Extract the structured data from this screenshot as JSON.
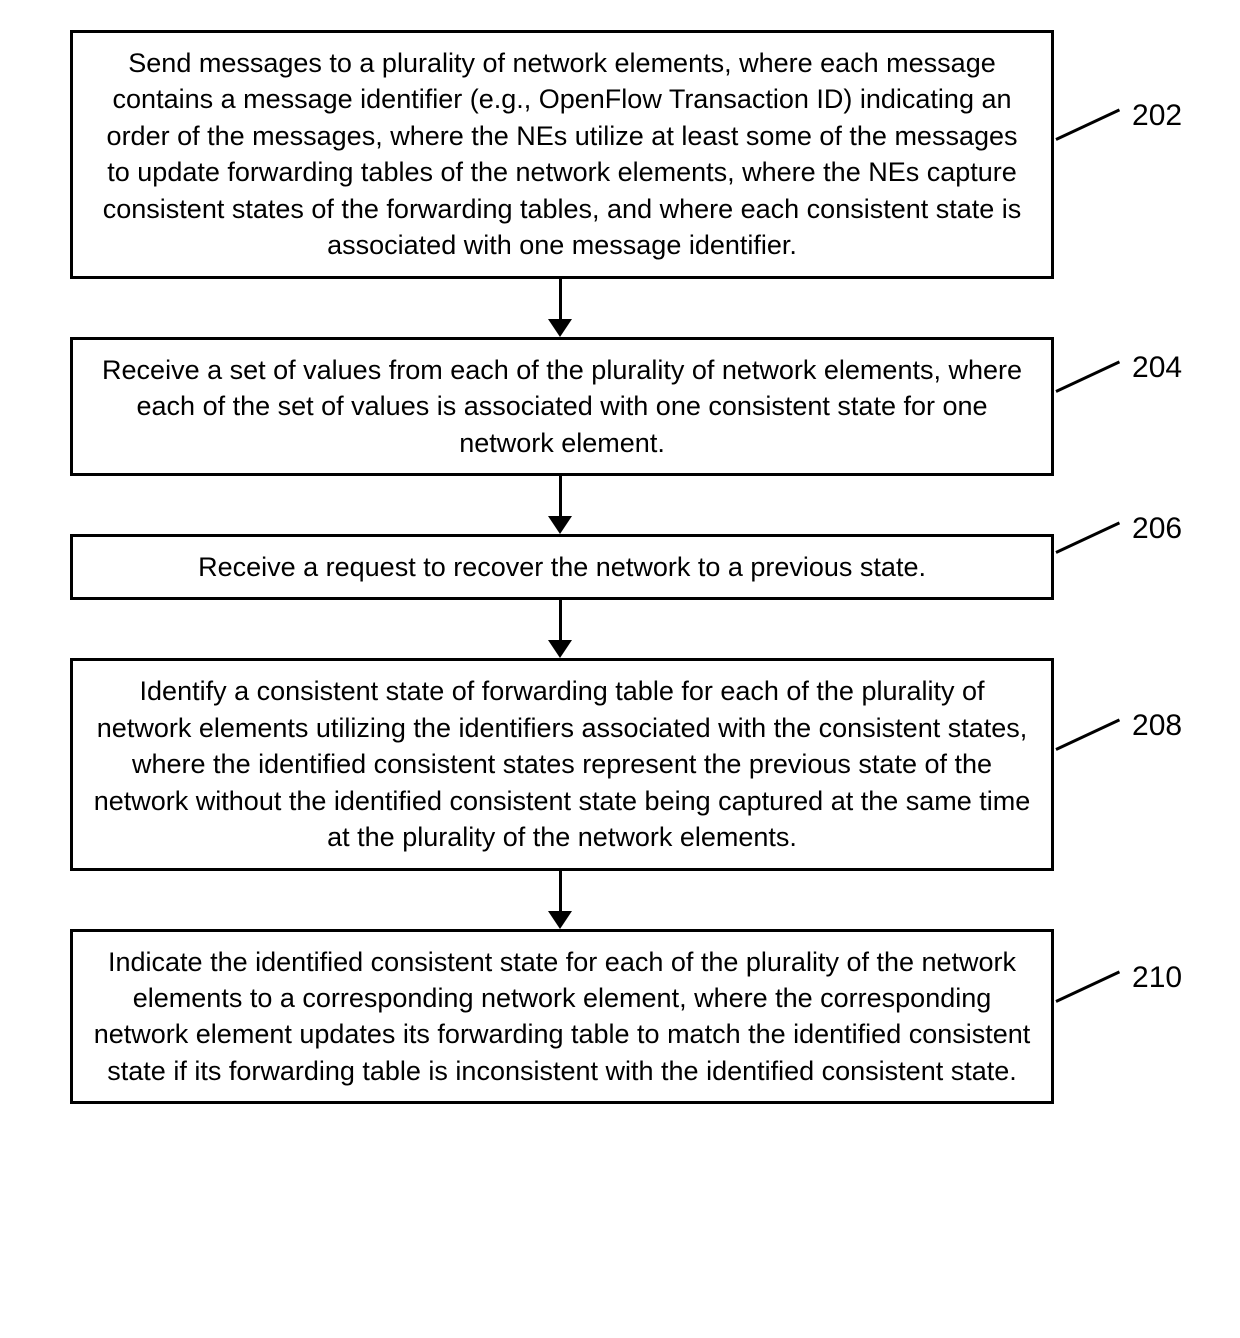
{
  "flowchart": {
    "type": "flowchart",
    "background_color": "#ffffff",
    "box_border_color": "#000000",
    "box_border_width": 3,
    "text_color": "#000000",
    "font_family": "Arial",
    "box_fontsize": 27,
    "label_fontsize": 30,
    "arrow_color": "#000000",
    "steps": [
      {
        "id": "202",
        "text": "Send messages to a plurality of network elements, where each message contains a message identifier (e.g., OpenFlow Transaction ID) indicating an order of the messages, where the NEs utilize at least some of the messages to update forwarding tables of the network elements, where the NEs capture consistent states of the forwarding tables, and where each consistent state is associated with one message identifier."
      },
      {
        "id": "204",
        "text": "Receive a set of values from each of the plurality of network elements, where each of the set of values is associated with one consistent state for one network element."
      },
      {
        "id": "206",
        "text": "Receive a request to recover the network to a previous state."
      },
      {
        "id": "208",
        "text": "Identify a consistent state of forwarding table for each of the plurality of network elements utilizing the identifiers associated with the consistent states, where the identified consistent states represent the previous state of the network without the identified consistent state being captured at the same time at the plurality of the network elements."
      },
      {
        "id": "210",
        "text": "Indicate the identified consistent state for each of the plurality of the network elements to a corresponding network element, where the corresponding network element updates its forwarding table to match the identified consistent state if its forwarding table is inconsistent with the identified consistent state."
      }
    ]
  }
}
